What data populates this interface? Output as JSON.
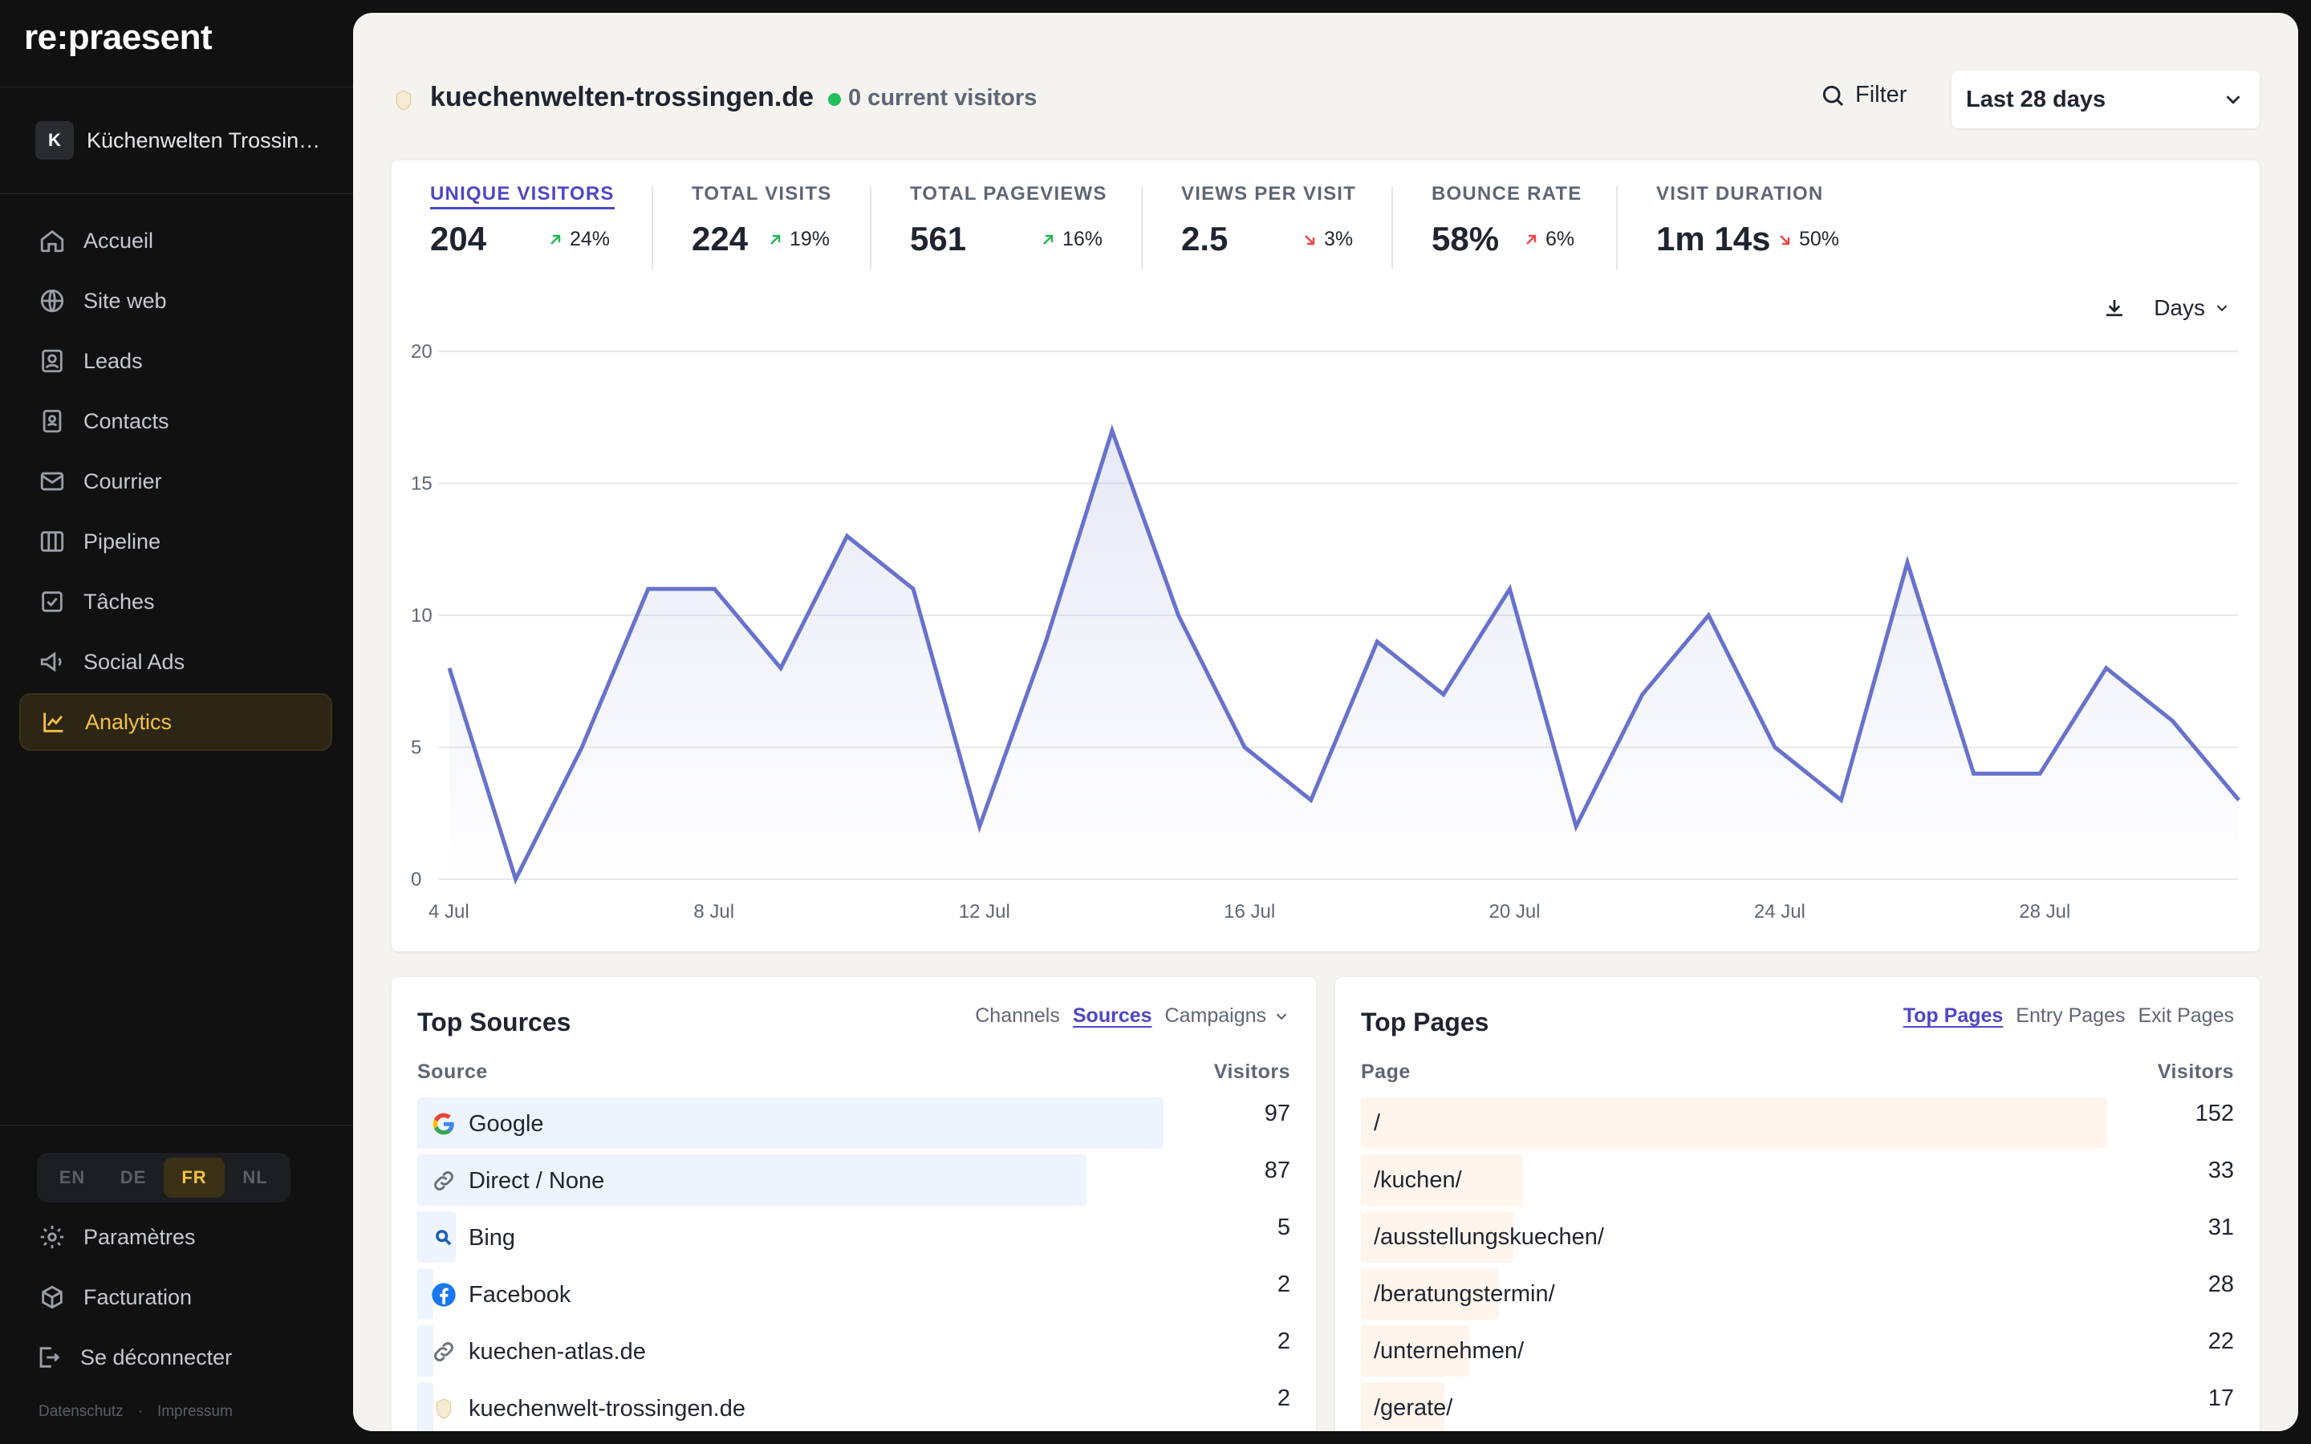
{
  "app": {
    "brand": "re:praesent",
    "org_initial": "K",
    "org_name": "Küchenwelten Trossingen"
  },
  "nav": [
    {
      "label": "Accueil",
      "icon": "home-icon"
    },
    {
      "label": "Site web",
      "icon": "globe-icon"
    },
    {
      "label": "Leads",
      "icon": "lead-icon"
    },
    {
      "label": "Contacts",
      "icon": "contact-book-icon"
    },
    {
      "label": "Courrier",
      "icon": "mail-icon"
    },
    {
      "label": "Pipeline",
      "icon": "columns-icon"
    },
    {
      "label": "Tâches",
      "icon": "checkbox-icon"
    },
    {
      "label": "Social Ads",
      "icon": "megaphone-icon"
    },
    {
      "label": "Analytics",
      "icon": "chart-line-icon",
      "active": true
    }
  ],
  "languages": [
    "EN",
    "DE",
    "FR",
    "NL"
  ],
  "active_language": "FR",
  "bottom_nav": {
    "settings": "Paramètres",
    "billing": "Facturation",
    "logout": "Se déconnecter"
  },
  "footer": {
    "privacy": "Datenschutz",
    "imprint": "Impressum"
  },
  "header": {
    "site": "kuechenwelten-trossingen.de",
    "current_visitors": "0 current visitors",
    "filter_label": "Filter",
    "period": "Last 28 days"
  },
  "metrics": [
    {
      "label": "UNIQUE VISITORS",
      "value": "204",
      "change": "24%",
      "direction": "up",
      "active": true
    },
    {
      "label": "TOTAL VISITS",
      "value": "224",
      "change": "19%",
      "direction": "up"
    },
    {
      "label": "TOTAL PAGEVIEWS",
      "value": "561",
      "change": "16%",
      "direction": "up"
    },
    {
      "label": "VIEWS PER VISIT",
      "value": "2.5",
      "change": "3%",
      "direction": "down"
    },
    {
      "label": "BOUNCE RATE",
      "value": "58%",
      "change": "6%",
      "direction": "up"
    },
    {
      "label": "VISIT DURATION",
      "value": "1m 14s",
      "change": "50%",
      "direction": "down"
    }
  ],
  "chart_controls": {
    "interval": "Days"
  },
  "chart_data": {
    "type": "area",
    "x": [
      "4 Jul",
      "5 Jul",
      "6 Jul",
      "7 Jul",
      "8 Jul",
      "9 Jul",
      "10 Jul",
      "11 Jul",
      "12 Jul",
      "13 Jul",
      "14 Jul",
      "15 Jul",
      "16 Jul",
      "17 Jul",
      "18 Jul",
      "19 Jul",
      "20 Jul",
      "21 Jul",
      "22 Jul",
      "23 Jul",
      "24 Jul",
      "25 Jul",
      "26 Jul",
      "27 Jul",
      "28 Jul",
      "29 Jul",
      "30 Jul",
      "31 Jul"
    ],
    "series": [
      {
        "values": [
          8,
          0,
          5,
          11,
          11,
          8,
          13,
          11,
          2,
          9,
          17,
          10,
          5,
          3,
          9,
          7,
          11,
          2,
          7,
          10,
          5,
          3,
          12,
          4,
          4,
          8,
          6,
          3
        ]
      }
    ],
    "x_tick_labels": [
      "4 Jul",
      "8 Jul",
      "12 Jul",
      "16 Jul",
      "20 Jul",
      "24 Jul",
      "28 Jul"
    ],
    "y_ticks": [
      0,
      5,
      10,
      15,
      20
    ],
    "ylim": [
      0,
      20
    ],
    "grid": true,
    "line_color": "#6672cc"
  },
  "top_sources": {
    "title": "Top Sources",
    "tabs": [
      "Channels",
      "Sources",
      "Campaigns"
    ],
    "active_tab": "Sources",
    "col_source": "Source",
    "col_visitors": "Visitors",
    "bar_color": "#eef4fd",
    "rows": [
      {
        "label": "Google",
        "value": 97,
        "icon": "google-icon"
      },
      {
        "label": "Direct / None",
        "value": 87,
        "icon": "link-icon"
      },
      {
        "label": "Bing",
        "value": 5,
        "icon": "bing-search-icon"
      },
      {
        "label": "Facebook",
        "value": 2,
        "icon": "facebook-icon"
      },
      {
        "label": "kuechen-atlas.de",
        "value": 2,
        "icon": "link-icon"
      },
      {
        "label": "kuechenwelt-trossingen.de",
        "value": 2,
        "icon": "site-favicon-icon"
      }
    ]
  },
  "top_pages": {
    "title": "Top Pages",
    "tabs": [
      "Top Pages",
      "Entry Pages",
      "Exit Pages"
    ],
    "active_tab": "Top Pages",
    "col_page": "Page",
    "col_visitors": "Visitors",
    "bar_color": "#fff5ec",
    "rows": [
      {
        "label": "/",
        "value": 152
      },
      {
        "label": "/kuchen/",
        "value": 33
      },
      {
        "label": "/ausstellungskuechen/",
        "value": 31
      },
      {
        "label": "/beratungstermin/",
        "value": 28
      },
      {
        "label": "/unternehmen/",
        "value": 22
      },
      {
        "label": "/gerate/",
        "value": 17
      }
    ]
  }
}
